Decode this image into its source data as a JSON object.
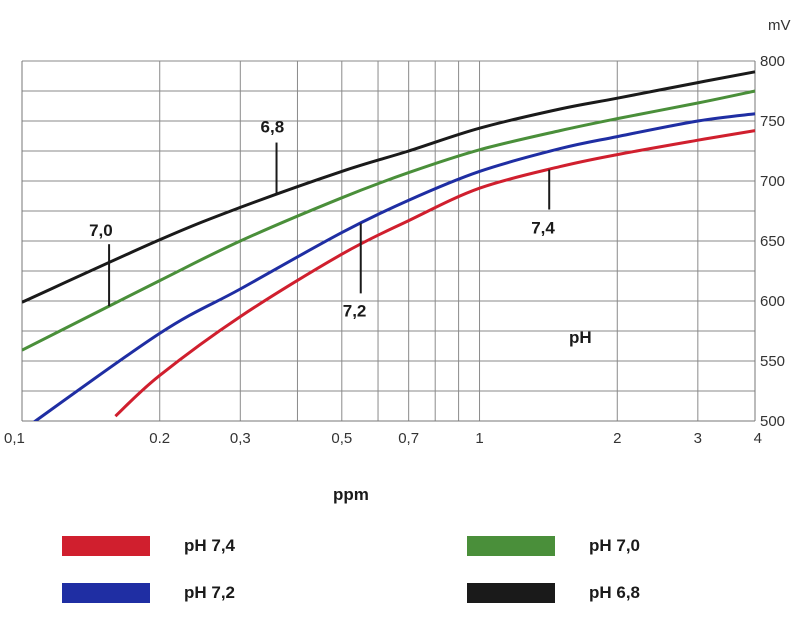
{
  "chart_data": {
    "type": "line",
    "xscale": "log",
    "xlabel": "ppm",
    "ylabel": "mV",
    "xlim": [
      0.1,
      4
    ],
    "ylim": [
      500,
      800
    ],
    "xticks": [
      0.1,
      0.2,
      0.3,
      0.5,
      0.7,
      1,
      2,
      3,
      4
    ],
    "xtick_labels": [
      "0,1",
      "0.2",
      "0,3",
      "0,5",
      "0,7",
      "1",
      "2",
      "3",
      "4"
    ],
    "yticks": [
      500,
      550,
      600,
      650,
      700,
      750,
      800
    ],
    "ytick_labels": [
      "500",
      "550",
      "600",
      "650",
      "700",
      "750",
      "800"
    ],
    "minor_x_gridlines": [
      0.4,
      0.6,
      0.8,
      0.9
    ],
    "minor_y_gridlines": [
      525,
      575,
      625,
      675,
      725,
      775
    ],
    "grid": true,
    "region_label": "pH",
    "series": [
      {
        "name": "pH 7,4",
        "color": "#d01f2e",
        "x": [
          0.16,
          0.2,
          0.3,
          0.5,
          0.7,
          1,
          1.5,
          2,
          3,
          4
        ],
        "y": [
          504,
          538,
          587,
          639,
          667,
          694,
          712,
          722,
          734,
          742
        ]
      },
      {
        "name": "pH 7,2",
        "color": "#1f2ea3",
        "x": [
          0.1,
          0.2,
          0.3,
          0.5,
          0.7,
          1,
          1.5,
          2,
          3,
          4
        ],
        "y": [
          492,
          573,
          610,
          657,
          684,
          708,
          727,
          737,
          750,
          756
        ]
      },
      {
        "name": "pH 7,0",
        "color": "#4a8f3a",
        "x": [
          0.1,
          0.2,
          0.3,
          0.5,
          0.7,
          1,
          1.5,
          2,
          3,
          4
        ],
        "y": [
          559,
          617,
          650,
          686,
          707,
          726,
          742,
          752,
          765,
          775
        ]
      },
      {
        "name": "pH 6,8",
        "color": "#1a1a1a",
        "x": [
          0.1,
          0.2,
          0.3,
          0.5,
          0.7,
          1,
          1.5,
          2,
          3,
          4
        ],
        "y": [
          599,
          651,
          678,
          708,
          725,
          744,
          760,
          769,
          782,
          791
        ]
      }
    ],
    "annotations": [
      {
        "text": "7,0",
        "series": "pH 7,0",
        "x": 0.155
      },
      {
        "text": "6,8",
        "series": "pH 6,8",
        "x": 0.36
      },
      {
        "text": "7,2",
        "series": "pH 7,2",
        "x": 0.55
      },
      {
        "text": "7,4",
        "series": "pH 7,4",
        "x": 1.42
      }
    ]
  },
  "legend": [
    {
      "label": "pH 7,4",
      "color": "#d01f2e"
    },
    {
      "label": "pH 7,0",
      "color": "#4a8f3a"
    },
    {
      "label": "pH 7,2",
      "color": "#1f2ea3"
    },
    {
      "label": "pH 6,8",
      "color": "#1a1a1a"
    }
  ]
}
